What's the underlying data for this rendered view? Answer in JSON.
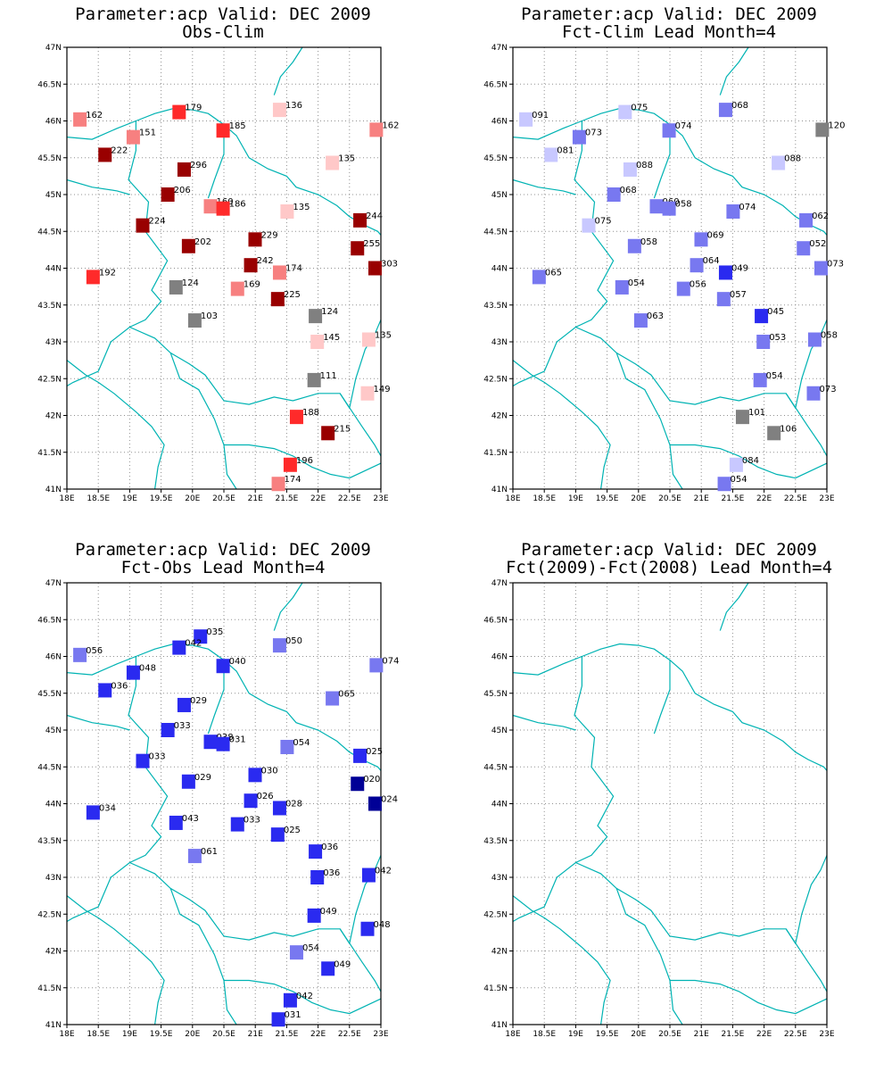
{
  "map": {
    "lon_range": [
      18,
      23
    ],
    "lat_range": [
      41,
      47
    ],
    "grid": "dotted",
    "x_ticks": [
      "18E",
      "18.5E",
      "19E",
      "19.5E",
      "20E",
      "20.5E",
      "21E",
      "21.5E",
      "22E",
      "22.5E",
      "23E"
    ],
    "y_ticks": [
      "41N",
      "41.5N",
      "42N",
      "42.5N",
      "43N",
      "43.5N",
      "44N",
      "44.5N",
      "45N",
      "45.5N",
      "46N",
      "46.5N",
      "47N"
    ],
    "boundary_color": "#00b3b3"
  },
  "colors": {
    "red_dark": "#990000",
    "red": "#ff2a2a",
    "red_light": "#f78080",
    "pink": "#ffc8c8",
    "gray": "#808080",
    "blue_light": "#c8c8ff",
    "blue_mid": "#7878f0",
    "blue": "#2a2af0",
    "blue_dark": "#000096"
  },
  "panels": [
    {
      "title_line1": "Parameter:acp Valid: DEC 2009",
      "title_line2": "Obs-Clim",
      "stations": [
        {
          "lon": 18.2,
          "lat": 46.02,
          "label": "162",
          "color": "red_light"
        },
        {
          "lon": 19.78,
          "lat": 46.12,
          "label": "179",
          "color": "red"
        },
        {
          "lon": 21.38,
          "lat": 46.15,
          "label": "136",
          "color": "pink"
        },
        {
          "lon": 22.92,
          "lat": 45.88,
          "label": "162",
          "color": "red_light"
        },
        {
          "lon": 19.05,
          "lat": 45.78,
          "label": "151",
          "color": "red_light"
        },
        {
          "lon": 20.48,
          "lat": 45.87,
          "label": "185",
          "color": "red"
        },
        {
          "lon": 18.6,
          "lat": 45.54,
          "label": "222",
          "color": "red_dark"
        },
        {
          "lon": 19.86,
          "lat": 45.34,
          "label": "296",
          "color": "red_dark"
        },
        {
          "lon": 22.22,
          "lat": 45.43,
          "label": "135",
          "color": "pink"
        },
        {
          "lon": 19.6,
          "lat": 45.0,
          "label": "206",
          "color": "red_dark"
        },
        {
          "lon": 20.28,
          "lat": 44.84,
          "label": "160",
          "color": "red_light"
        },
        {
          "lon": 20.48,
          "lat": 44.81,
          "label": "186",
          "color": "red"
        },
        {
          "lon": 21.5,
          "lat": 44.77,
          "label": "135",
          "color": "pink"
        },
        {
          "lon": 19.2,
          "lat": 44.58,
          "label": "224",
          "color": "red_dark"
        },
        {
          "lon": 22.66,
          "lat": 44.65,
          "label": "244",
          "color": "red_dark"
        },
        {
          "lon": 19.93,
          "lat": 44.3,
          "label": "202",
          "color": "red_dark"
        },
        {
          "lon": 20.99,
          "lat": 44.39,
          "label": "229",
          "color": "red_dark"
        },
        {
          "lon": 22.62,
          "lat": 44.27,
          "label": "255",
          "color": "red_dark"
        },
        {
          "lon": 18.41,
          "lat": 43.88,
          "label": "192",
          "color": "red"
        },
        {
          "lon": 20.92,
          "lat": 44.04,
          "label": "242",
          "color": "red_dark"
        },
        {
          "lon": 21.38,
          "lat": 43.94,
          "label": "174",
          "color": "red_light"
        },
        {
          "lon": 22.9,
          "lat": 44.0,
          "label": "303",
          "color": "red_dark"
        },
        {
          "lon": 19.73,
          "lat": 43.74,
          "label": "124",
          "color": "gray"
        },
        {
          "lon": 20.71,
          "lat": 43.72,
          "label": "169",
          "color": "red_light"
        },
        {
          "lon": 21.35,
          "lat": 43.58,
          "label": "225",
          "color": "red_dark"
        },
        {
          "lon": 20.03,
          "lat": 43.29,
          "label": "103",
          "color": "gray"
        },
        {
          "lon": 21.95,
          "lat": 43.35,
          "label": "124",
          "color": "gray"
        },
        {
          "lon": 21.98,
          "lat": 43.0,
          "label": "145",
          "color": "pink"
        },
        {
          "lon": 22.8,
          "lat": 43.03,
          "label": "135",
          "color": "pink"
        },
        {
          "lon": 21.93,
          "lat": 42.48,
          "label": "111",
          "color": "gray"
        },
        {
          "lon": 22.78,
          "lat": 42.3,
          "label": "149",
          "color": "pink"
        },
        {
          "lon": 21.65,
          "lat": 41.98,
          "label": "188",
          "color": "red"
        },
        {
          "lon": 22.15,
          "lat": 41.76,
          "label": "215",
          "color": "red_dark"
        },
        {
          "lon": 21.55,
          "lat": 41.33,
          "label": "196",
          "color": "red"
        },
        {
          "lon": 21.36,
          "lat": 41.07,
          "label": "174",
          "color": "red_light"
        }
      ]
    },
    {
      "title_line1": "Parameter:acp Valid: DEC 2009",
      "title_line2": "Fct-Clim Lead Month=4",
      "stations": [
        {
          "lon": 18.2,
          "lat": 46.02,
          "label": "091",
          "color": "blue_light"
        },
        {
          "lon": 19.78,
          "lat": 46.12,
          "label": "075",
          "color": "blue_light"
        },
        {
          "lon": 21.38,
          "lat": 46.15,
          "label": "068",
          "color": "blue_mid"
        },
        {
          "lon": 22.92,
          "lat": 45.88,
          "label": "120",
          "color": "gray"
        },
        {
          "lon": 19.05,
          "lat": 45.78,
          "label": "073",
          "color": "blue_mid"
        },
        {
          "lon": 20.48,
          "lat": 45.87,
          "label": "074",
          "color": "blue_mid"
        },
        {
          "lon": 18.6,
          "lat": 45.54,
          "label": "081",
          "color": "blue_light"
        },
        {
          "lon": 19.86,
          "lat": 45.34,
          "label": "088",
          "color": "blue_light"
        },
        {
          "lon": 22.22,
          "lat": 45.43,
          "label": "088",
          "color": "blue_light"
        },
        {
          "lon": 19.6,
          "lat": 45.0,
          "label": "068",
          "color": "blue_mid"
        },
        {
          "lon": 20.28,
          "lat": 44.84,
          "label": "060",
          "color": "blue_mid"
        },
        {
          "lon": 20.48,
          "lat": 44.81,
          "label": "058",
          "color": "blue_mid"
        },
        {
          "lon": 21.5,
          "lat": 44.77,
          "label": "074",
          "color": "blue_mid"
        },
        {
          "lon": 19.2,
          "lat": 44.58,
          "label": "075",
          "color": "blue_light"
        },
        {
          "lon": 22.66,
          "lat": 44.65,
          "label": "062",
          "color": "blue_mid"
        },
        {
          "lon": 19.93,
          "lat": 44.3,
          "label": "058",
          "color": "blue_mid"
        },
        {
          "lon": 20.99,
          "lat": 44.39,
          "label": "069",
          "color": "blue_mid"
        },
        {
          "lon": 22.62,
          "lat": 44.27,
          "label": "052",
          "color": "blue_mid"
        },
        {
          "lon": 18.41,
          "lat": 43.88,
          "label": "065",
          "color": "blue_mid"
        },
        {
          "lon": 20.92,
          "lat": 44.04,
          "label": "064",
          "color": "blue_mid"
        },
        {
          "lon": 21.38,
          "lat": 43.94,
          "label": "049",
          "color": "blue"
        },
        {
          "lon": 22.9,
          "lat": 44.0,
          "label": "073",
          "color": "blue_mid"
        },
        {
          "lon": 19.73,
          "lat": 43.74,
          "label": "054",
          "color": "blue_mid"
        },
        {
          "lon": 20.71,
          "lat": 43.72,
          "label": "056",
          "color": "blue_mid"
        },
        {
          "lon": 21.35,
          "lat": 43.58,
          "label": "057",
          "color": "blue_mid"
        },
        {
          "lon": 20.03,
          "lat": 43.29,
          "label": "063",
          "color": "blue_mid"
        },
        {
          "lon": 21.95,
          "lat": 43.35,
          "label": "045",
          "color": "blue"
        },
        {
          "lon": 21.98,
          "lat": 43.0,
          "label": "053",
          "color": "blue_mid"
        },
        {
          "lon": 22.8,
          "lat": 43.03,
          "label": "058",
          "color": "blue_mid"
        },
        {
          "lon": 21.93,
          "lat": 42.48,
          "label": "054",
          "color": "blue_mid"
        },
        {
          "lon": 22.78,
          "lat": 42.3,
          "label": "073",
          "color": "blue_mid"
        },
        {
          "lon": 21.65,
          "lat": 41.98,
          "label": "101",
          "color": "gray"
        },
        {
          "lon": 22.15,
          "lat": 41.76,
          "label": "106",
          "color": "gray"
        },
        {
          "lon": 21.55,
          "lat": 41.33,
          "label": "084",
          "color": "blue_light"
        },
        {
          "lon": 21.36,
          "lat": 41.07,
          "label": "054",
          "color": "blue_mid"
        }
      ]
    },
    {
      "title_line1": "Parameter:acp Valid: DEC 2009",
      "title_line2": "Fct-Obs Lead Month=4",
      "stations": [
        {
          "lon": 18.2,
          "lat": 46.02,
          "label": "056",
          "color": "blue_mid"
        },
        {
          "lon": 20.12,
          "lat": 46.27,
          "label": "035",
          "color": "blue"
        },
        {
          "lon": 19.78,
          "lat": 46.12,
          "label": "042",
          "color": "blue"
        },
        {
          "lon": 21.38,
          "lat": 46.15,
          "label": "050",
          "color": "blue_mid"
        },
        {
          "lon": 22.92,
          "lat": 45.88,
          "label": "074",
          "color": "blue_mid"
        },
        {
          "lon": 19.05,
          "lat": 45.78,
          "label": "048",
          "color": "blue"
        },
        {
          "lon": 20.48,
          "lat": 45.87,
          "label": "040",
          "color": "blue"
        },
        {
          "lon": 18.6,
          "lat": 45.54,
          "label": "036",
          "color": "blue"
        },
        {
          "lon": 19.86,
          "lat": 45.34,
          "label": "029",
          "color": "blue"
        },
        {
          "lon": 22.22,
          "lat": 45.43,
          "label": "065",
          "color": "blue_mid"
        },
        {
          "lon": 19.6,
          "lat": 45.0,
          "label": "033",
          "color": "blue"
        },
        {
          "lon": 20.28,
          "lat": 44.84,
          "label": "038",
          "color": "blue"
        },
        {
          "lon": 20.48,
          "lat": 44.81,
          "label": "031",
          "color": "blue"
        },
        {
          "lon": 21.5,
          "lat": 44.77,
          "label": "054",
          "color": "blue_mid"
        },
        {
          "lon": 19.2,
          "lat": 44.58,
          "label": "033",
          "color": "blue"
        },
        {
          "lon": 22.66,
          "lat": 44.65,
          "label": "025",
          "color": "blue"
        },
        {
          "lon": 19.93,
          "lat": 44.3,
          "label": "029",
          "color": "blue"
        },
        {
          "lon": 20.99,
          "lat": 44.39,
          "label": "030",
          "color": "blue"
        },
        {
          "lon": 22.62,
          "lat": 44.27,
          "label": "020",
          "color": "blue_dark"
        },
        {
          "lon": 18.41,
          "lat": 43.88,
          "label": "034",
          "color": "blue"
        },
        {
          "lon": 20.92,
          "lat": 44.04,
          "label": "026",
          "color": "blue"
        },
        {
          "lon": 21.38,
          "lat": 43.94,
          "label": "028",
          "color": "blue"
        },
        {
          "lon": 22.9,
          "lat": 44.0,
          "label": "024",
          "color": "blue_dark"
        },
        {
          "lon": 19.73,
          "lat": 43.74,
          "label": "043",
          "color": "blue"
        },
        {
          "lon": 20.71,
          "lat": 43.72,
          "label": "033",
          "color": "blue"
        },
        {
          "lon": 21.35,
          "lat": 43.58,
          "label": "025",
          "color": "blue"
        },
        {
          "lon": 20.03,
          "lat": 43.29,
          "label": "061",
          "color": "blue_mid"
        },
        {
          "lon": 21.95,
          "lat": 43.35,
          "label": "036",
          "color": "blue"
        },
        {
          "lon": 21.98,
          "lat": 43.0,
          "label": "036",
          "color": "blue"
        },
        {
          "lon": 22.8,
          "lat": 43.03,
          "label": "042",
          "color": "blue"
        },
        {
          "lon": 21.93,
          "lat": 42.48,
          "label": "049",
          "color": "blue"
        },
        {
          "lon": 22.78,
          "lat": 42.3,
          "label": "048",
          "color": "blue"
        },
        {
          "lon": 21.65,
          "lat": 41.98,
          "label": "054",
          "color": "blue_mid"
        },
        {
          "lon": 22.15,
          "lat": 41.76,
          "label": "049",
          "color": "blue"
        },
        {
          "lon": 21.55,
          "lat": 41.33,
          "label": "042",
          "color": "blue"
        },
        {
          "lon": 21.36,
          "lat": 41.07,
          "label": "031",
          "color": "blue"
        }
      ]
    },
    {
      "title_line1": "Parameter:acp Valid: DEC 2009",
      "title_line2": "Fct(2009)-Fct(2008) Lead Month=4",
      "stations": []
    }
  ]
}
